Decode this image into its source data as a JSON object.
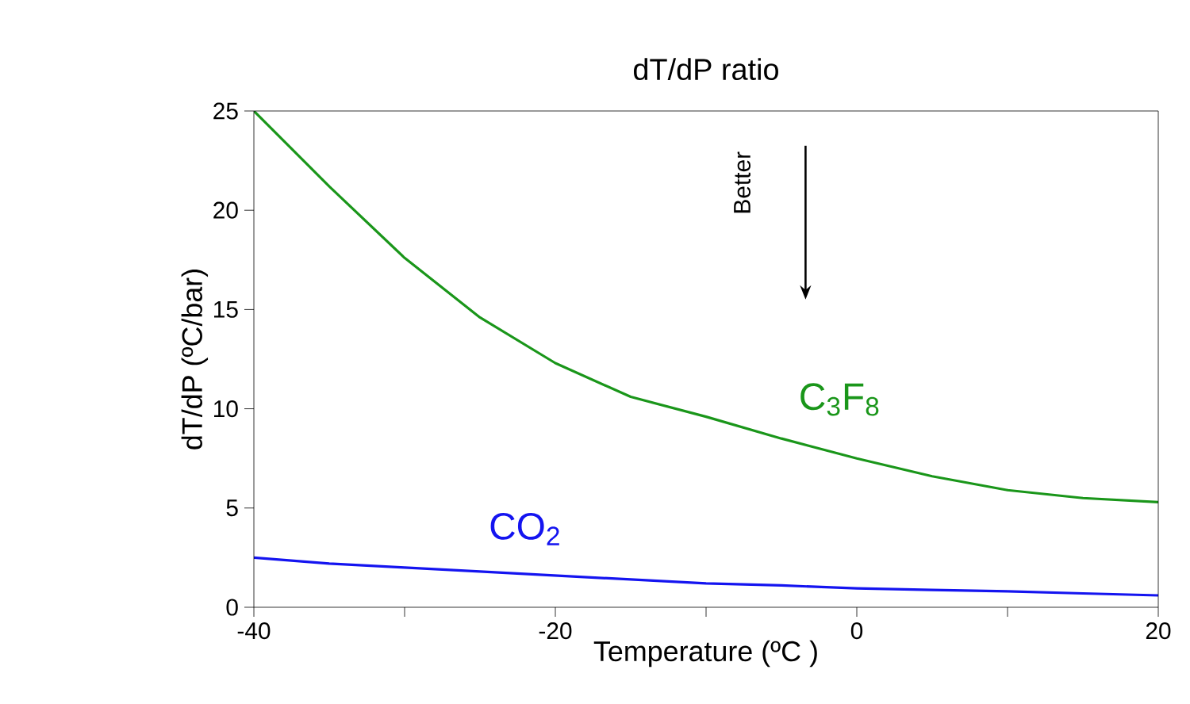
{
  "chart_data": {
    "type": "line",
    "title": "dT/dP ratio",
    "xlabel": "Temperature  (ºC )",
    "ylabel": "dT/dP (ºC/bar)",
    "x": [
      -40,
      -35,
      -30,
      -25,
      -20,
      -15,
      -10,
      -5,
      0,
      5,
      10,
      15,
      20
    ],
    "series": [
      {
        "name": "C$_{3}$F$_{8}$",
        "color": "#1a961a",
        "values": [
          25,
          21.2,
          17.6,
          14.6,
          12.3,
          10.6,
          9.6,
          8.5,
          7.5,
          6.6,
          5.9,
          5.5,
          5.3
        ]
      },
      {
        "name": "CO$_{2}$",
        "color": "#1414f0",
        "values": [
          2.5,
          2.2,
          2.0,
          1.8,
          1.6,
          1.4,
          1.2,
          1.1,
          0.95,
          0.87,
          0.8,
          0.7,
          0.6
        ]
      }
    ],
    "xlim": [
      -40,
      20
    ],
    "ylim": [
      0,
      25
    ],
    "xticks": [
      -40,
      {
        "value": -30,
        "label": null
      },
      -20,
      {
        "value": -10,
        "label": null
      },
      0,
      {
        "value": 10,
        "label": null
      },
      20
    ],
    "yticks": [
      0,
      5,
      10,
      15,
      20,
      25
    ],
    "annotations": [
      "Better"
    ],
    "grid": false,
    "legend": false,
    "marker": "none",
    "line_style": "solid"
  }
}
